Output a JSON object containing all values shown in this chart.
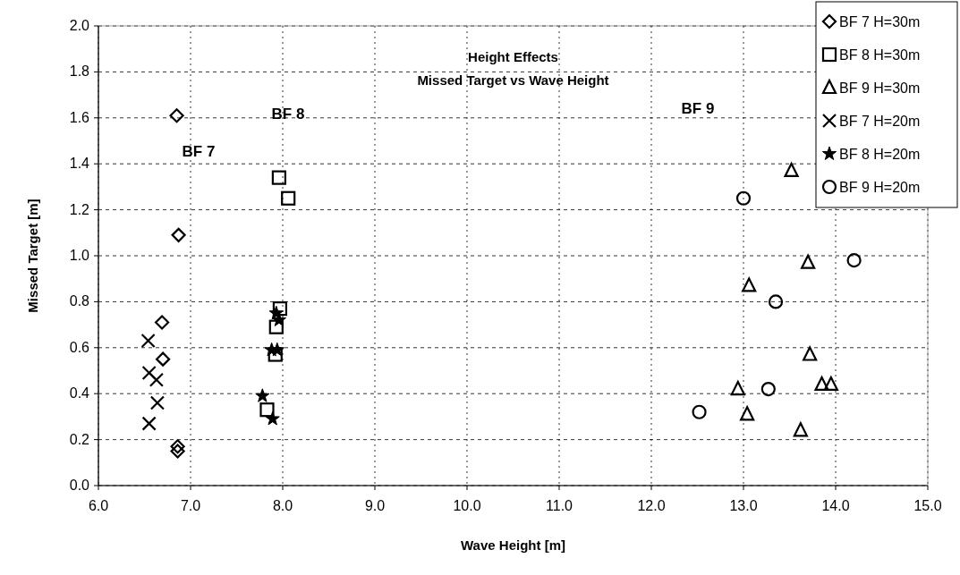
{
  "chart_data": {
    "type": "scatter",
    "title": "Height Effects",
    "subtitle": "Missed Target vs Wave Height",
    "xlabel": "Wave Height [m]",
    "ylabel": "Missed Target [m]",
    "xlim": [
      6,
      15
    ],
    "ylim": [
      0,
      2
    ],
    "xticks": [
      {
        "value": 6,
        "label": "6.0"
      },
      {
        "value": 7,
        "label": "7.0"
      },
      {
        "value": 8,
        "label": "8.0"
      },
      {
        "value": 9,
        "label": "9.0"
      },
      {
        "value": 10,
        "label": "10.0"
      },
      {
        "value": 11,
        "label": "11.0"
      },
      {
        "value": 12,
        "label": "12.0"
      },
      {
        "value": 13,
        "label": "13.0"
      },
      {
        "value": 14,
        "label": "14.0"
      },
      {
        "value": 15,
        "label": "15.0"
      }
    ],
    "yticks": [
      {
        "value": 0,
        "label": "0.0"
      },
      {
        "value": 0.2,
        "label": "0.2"
      },
      {
        "value": 0.4,
        "label": "0.4"
      },
      {
        "value": 0.6,
        "label": "0.6"
      },
      {
        "value": 0.8,
        "label": "0.8"
      },
      {
        "value": 1,
        "label": "1.0"
      },
      {
        "value": 1.2,
        "label": "1.2"
      },
      {
        "value": 1.4,
        "label": "1.4"
      },
      {
        "value": 1.6,
        "label": "1.6"
      },
      {
        "value": 1.8,
        "label": "1.8"
      },
      {
        "value": 2,
        "label": "2.0"
      }
    ],
    "grid": true,
    "legend": "top right",
    "annotations": [
      "BF 7",
      "BF 8",
      "BF 9"
    ],
    "series": [
      {
        "name": "BF 7 H=30m",
        "color": "#000000",
        "marker": "diamond",
        "x": [
          6.85,
          6.87,
          6.69,
          6.7,
          6.86,
          6.86
        ],
        "values": [
          1.61,
          1.09,
          0.71,
          0.55,
          0.17,
          0.15
        ]
      },
      {
        "name": "BF 8 H=30m",
        "color": "#000000",
        "marker": "square",
        "x": [
          7.96,
          8.06,
          7.97,
          7.93,
          7.92,
          7.83
        ],
        "values": [
          1.34,
          1.25,
          0.77,
          0.69,
          0.57,
          0.33
        ]
      },
      {
        "name": "BF 9 H=30m",
        "color": "#000000",
        "marker": "triangle",
        "x": [
          13.52,
          13.7,
          13.06,
          13.72,
          12.94,
          13.85,
          13.95,
          13.04,
          13.62
        ],
        "values": [
          1.37,
          0.97,
          0.87,
          0.57,
          0.42,
          0.44,
          0.44,
          0.31,
          0.24
        ]
      },
      {
        "name": "BF 7 H=20m",
        "color": "#000000",
        "marker": "cross",
        "x": [
          6.54,
          6.55,
          6.63,
          6.64,
          6.55
        ],
        "values": [
          0.63,
          0.49,
          0.46,
          0.36,
          0.27
        ]
      },
      {
        "name": "BF 8 H=20m",
        "color": "#000000",
        "marker": "star",
        "x": [
          7.93,
          7.96,
          7.88,
          7.94,
          7.78,
          7.89
        ],
        "values": [
          0.75,
          0.72,
          0.59,
          0.59,
          0.39,
          0.29
        ]
      },
      {
        "name": "BF 9 H=20m",
        "color": "#000000",
        "marker": "circle",
        "x": [
          13.0,
          14.2,
          13.35,
          13.27,
          12.52
        ],
        "values": [
          1.25,
          0.98,
          0.8,
          0.42,
          0.32
        ]
      }
    ]
  }
}
